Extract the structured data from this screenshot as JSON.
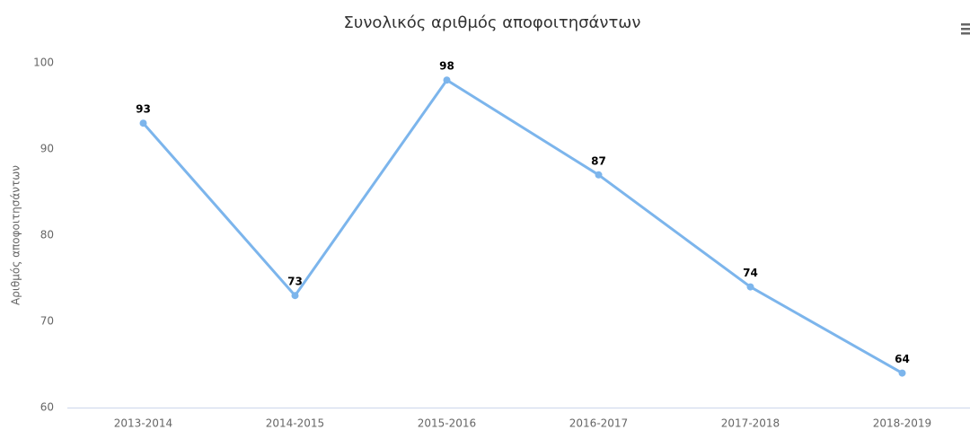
{
  "chart_data": {
    "type": "line",
    "title": "Συνολικός αριθμός αποφοιτησάντων",
    "y_axis_label": "Αριθμός αποφοιτησάντων",
    "categories": [
      "2013-2014",
      "2014-2015",
      "2015-2016",
      "2016-2017",
      "2017-2018",
      "2018-2019"
    ],
    "values": [
      93,
      73,
      98,
      87,
      74,
      64
    ],
    "color": "#7cb5ec",
    "ylim": [
      60,
      100
    ],
    "yticks": [
      60,
      70,
      80,
      90,
      100
    ],
    "grid": false,
    "data_labels": true
  }
}
